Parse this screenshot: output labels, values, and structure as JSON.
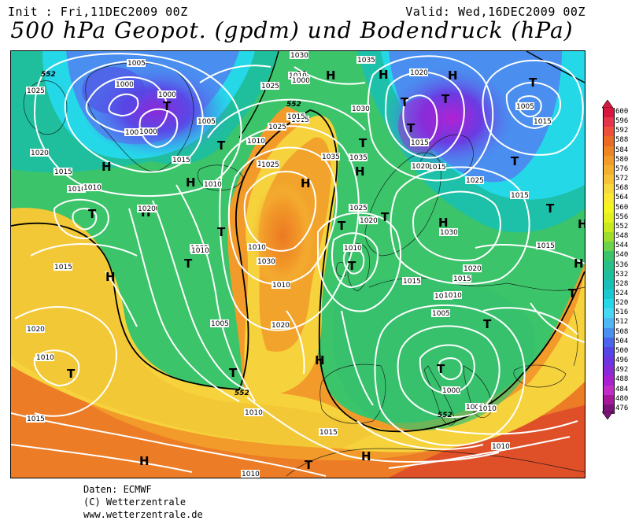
{
  "header": {
    "init": "Init : Fri,11DEC2009 00Z",
    "valid": "Valid: Wed,16DEC2009 00Z",
    "title": "500 hPa Geopot. (gpdm) und Bodendruck (hPa)"
  },
  "credits": {
    "line1": "Daten: ECMWF",
    "line2": "(C) Wetterzentrale",
    "line3": "www.wetterzentrale.de"
  },
  "scale": {
    "values": [
      "600",
      "596",
      "592",
      "588",
      "584",
      "580",
      "576",
      "572",
      "568",
      "564",
      "560",
      "556",
      "552",
      "548",
      "544",
      "540",
      "536",
      "532",
      "528",
      "524",
      "520",
      "516",
      "512",
      "508",
      "504",
      "500",
      "496",
      "492",
      "488",
      "484",
      "480",
      "476"
    ],
    "colors": [
      "#d6163f",
      "#e5334a",
      "#ee4f3a",
      "#ea6a25",
      "#ef8423",
      "#f29b2a",
      "#f3b030",
      "#f6c338",
      "#f8d83f",
      "#faeb32",
      "#f4f61f",
      "#e5f020",
      "#c6ea1f",
      "#9edd2c",
      "#6ad34a",
      "#38c36c",
      "#27bf8a",
      "#1dbf9e",
      "#18c1b5",
      "#19c9cf",
      "#25d8e8",
      "#47d9f4",
      "#4fb8f4",
      "#4a8ff0",
      "#4a65ec",
      "#5545e4",
      "#6c35e0",
      "#8a29d8",
      "#a820d0",
      "#c22bc6",
      "#a5189a",
      "#7a1478"
    ]
  },
  "map": {
    "pressure_labels": [
      "1005",
      "1000",
      "1025",
      "1000",
      "1005",
      "1000",
      "1005",
      "1010",
      "1020",
      "1010",
      "1015",
      "1030",
      "1035",
      "1015",
      "1025",
      "1025",
      "1035",
      "1020",
      "1030",
      "1015",
      "1020",
      "1015",
      "1025",
      "1020",
      "1010",
      "1010",
      "1005",
      "1000",
      "1020",
      "1020",
      "1010",
      "1015",
      "1015",
      "1020",
      "1020",
      "1010",
      "1005",
      "1030",
      "1020",
      "1025",
      "1035",
      "1010",
      "1015",
      "1010",
      "1015",
      "1020",
      "1010",
      "1030",
      "1005",
      "1015",
      "1010",
      "1020",
      "1005",
      "1000",
      "1010",
      "1015",
      "1015",
      "1010",
      "1015",
      "1015",
      "1010",
      "1010",
      "1005",
      "1010",
      "1025",
      "1015",
      "1010"
    ],
    "contour_labels": [
      "552",
      "552",
      "552",
      "552"
    ],
    "high_markers": [
      "H",
      "H",
      "H",
      "H",
      "H",
      "H",
      "H",
      "H",
      "H",
      "H",
      "H",
      "H",
      "H",
      "H",
      "H",
      "H"
    ],
    "low_markers": [
      "T",
      "T",
      "T",
      "T",
      "T",
      "T",
      "T",
      "T",
      "T",
      "T",
      "T",
      "T",
      "T",
      "T",
      "T",
      "T",
      "T",
      "T",
      "T",
      "T",
      "T"
    ]
  }
}
